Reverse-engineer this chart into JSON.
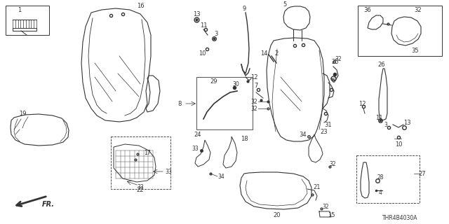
{
  "bg_color": "#ffffff",
  "line_color": "#333333",
  "diagram_code": "THR4B4030A"
}
